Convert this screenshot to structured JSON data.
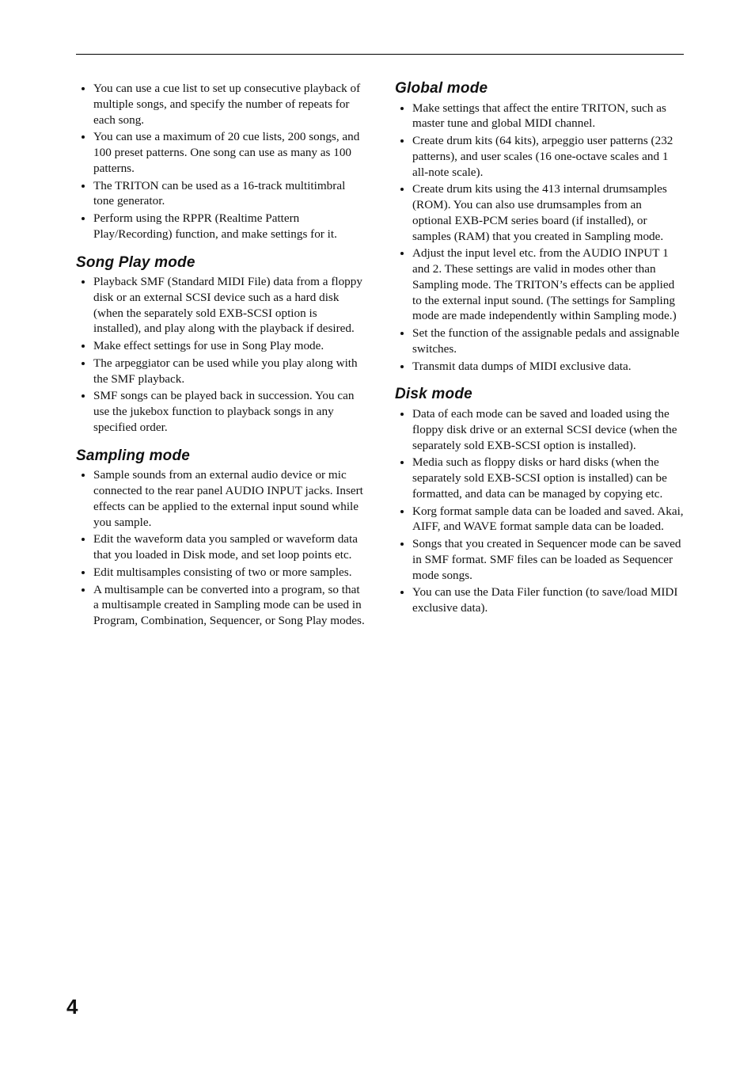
{
  "intro_items": [
    "You can use a cue list to set up consecutive playback of multiple songs, and specify the number of repeats for each song.",
    "You can use a maximum of 20 cue lists, 200 songs, and 100 preset patterns. One song can use as many as 100 patterns.",
    "The TRITON can be used as a 16-track multitimbral tone generator.",
    "Perform using the RPPR (Realtime Pattern Play/Recording) function, and make settings for it."
  ],
  "sections": [
    {
      "title": "Song Play mode",
      "items": [
        "Playback SMF (Standard MIDI File) data from a floppy disk or an external SCSI device such as a hard disk (when the separately sold EXB-SCSI option is installed), and play along with the playback if desired.",
        "Make effect settings for use in Song Play mode.",
        "The arpeggiator can be used while you play along with the SMF playback.",
        "SMF songs can be played back in succession. You can use the jukebox function to playback songs in any specified order."
      ]
    },
    {
      "title": "Sampling mode",
      "items": [
        "Sample sounds from an external audio device or mic connected to the rear panel AUDIO INPUT jacks. Insert effects can be applied to the external input sound while you sample.",
        "Edit the waveform data you sampled or waveform data that you loaded in Disk mode, and set loop points etc.",
        "Edit multisamples consisting of two or more samples.",
        "A multisample can be converted into a program, so that a multisample created in Sampling mode can be used in Program, Combination, Sequencer, or Song Play modes."
      ]
    },
    {
      "title": "Global mode",
      "items": [
        "Make settings that affect the entire TRITON, such as master tune and global MIDI channel.",
        "Create drum kits (64 kits), arpeggio user patterns (232 patterns), and user scales (16 one-octave scales and 1 all-note scale).",
        "Create drum kits using the 413 internal drumsamples (ROM). You can also use drumsamples from an optional EXB-PCM series board (if installed), or samples (RAM) that you created in Sampling mode.",
        "Adjust the input level etc. from the AUDIO INPUT 1 and 2. These settings are valid in modes other than Sampling mode. The TRITON’s effects can be applied to the external input sound. (The settings for Sampling mode are made independently within Sampling mode.)",
        "Set the function of the assignable pedals and assignable switches.",
        "Transmit data dumps of MIDI exclusive data."
      ]
    },
    {
      "title": "Disk mode",
      "items": [
        "Data of each mode can be saved and loaded using the floppy disk drive or an external SCSI device (when the separately sold EXB-SCSI option is installed).",
        "Media such as floppy disks or hard disks (when the separately sold EXB-SCSI option is installed) can be formatted, and data can be managed by copying etc.",
        "Korg format sample data can be loaded and saved. Akai, AIFF, and WAVE format sample data can be loaded.",
        "Songs that you created in Sequencer mode can be saved in SMF format. SMF files can be loaded as Sequencer mode songs.",
        "You can use the Data Filer function (to save/load MIDI exclusive data)."
      ]
    }
  ],
  "page_number": "4"
}
